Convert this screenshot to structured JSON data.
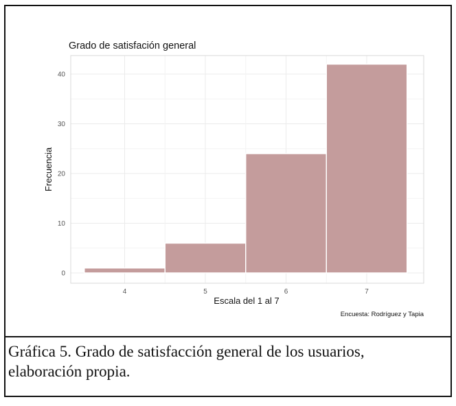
{
  "chart_data": {
    "type": "bar",
    "title": "Grado de satisfación general",
    "xlabel": "Escala del 1 al 7",
    "ylabel": "Frecuencia",
    "categories": [
      "4",
      "5",
      "6",
      "7"
    ],
    "values": [
      1,
      6,
      24,
      42
    ],
    "yticks": [
      "0",
      "10",
      "20",
      "30",
      "40"
    ],
    "ylim": [
      0,
      44
    ],
    "grid": true,
    "legend": "none",
    "source": "Encuesta: Rodríguez y Tapia",
    "bar_color": "#c49c9c",
    "grid_color": "#ebebeb"
  },
  "caption": {
    "line1": "Gráfica 5. Grado de satisfacción general de los usuarios,",
    "line2": "elaboración propia."
  }
}
